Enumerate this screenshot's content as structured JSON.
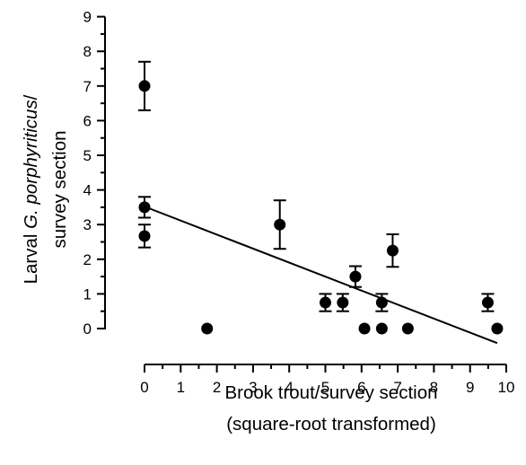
{
  "chart_data": {
    "type": "scatter",
    "xlabel_line1": "Brook trout/survey section",
    "xlabel_line2": "(square-root transformed)",
    "ylabel_part1": "Larval ",
    "ylabel_species": "G. porphyriticus",
    "ylabel_part2": "/",
    "ylabel_line2": "survey section",
    "xlim": [
      0,
      10
    ],
    "ylim": [
      0,
      9
    ],
    "x_ticks": [
      "0",
      "1",
      "2",
      "3",
      "4",
      "5",
      "6",
      "7",
      "8",
      "9",
      "10"
    ],
    "y_ticks": [
      "0",
      "1",
      "2",
      "3",
      "4",
      "5",
      "6",
      "7",
      "8",
      "9"
    ],
    "grid": false,
    "points": [
      {
        "x": 0.0,
        "y": 7.0,
        "err": 0.7
      },
      {
        "x": 0.0,
        "y": 3.5,
        "err": 0.3
      },
      {
        "x": 0.0,
        "y": 2.67,
        "err": 0.33
      },
      {
        "x": 1.73,
        "y": 0.0,
        "err": 0
      },
      {
        "x": 3.74,
        "y": 3.0,
        "err": 0.7
      },
      {
        "x": 5.0,
        "y": 0.75,
        "err": 0.25
      },
      {
        "x": 5.48,
        "y": 0.75,
        "err": 0.25
      },
      {
        "x": 5.83,
        "y": 1.5,
        "err": 0.3
      },
      {
        "x": 6.08,
        "y": 0.0,
        "err": 0
      },
      {
        "x": 6.56,
        "y": 0.75,
        "err": 0.25
      },
      {
        "x": 6.56,
        "y": 0.0,
        "err": 0
      },
      {
        "x": 6.86,
        "y": 2.25,
        "err": 0.47
      },
      {
        "x": 7.28,
        "y": 0.0,
        "err": 0
      },
      {
        "x": 9.49,
        "y": 0.75,
        "err": 0.25
      },
      {
        "x": 9.75,
        "y": 0.0,
        "err": 0
      }
    ],
    "regression": {
      "x": [
        0.0,
        9.75
      ],
      "y": [
        3.52,
        -0.42
      ]
    }
  }
}
